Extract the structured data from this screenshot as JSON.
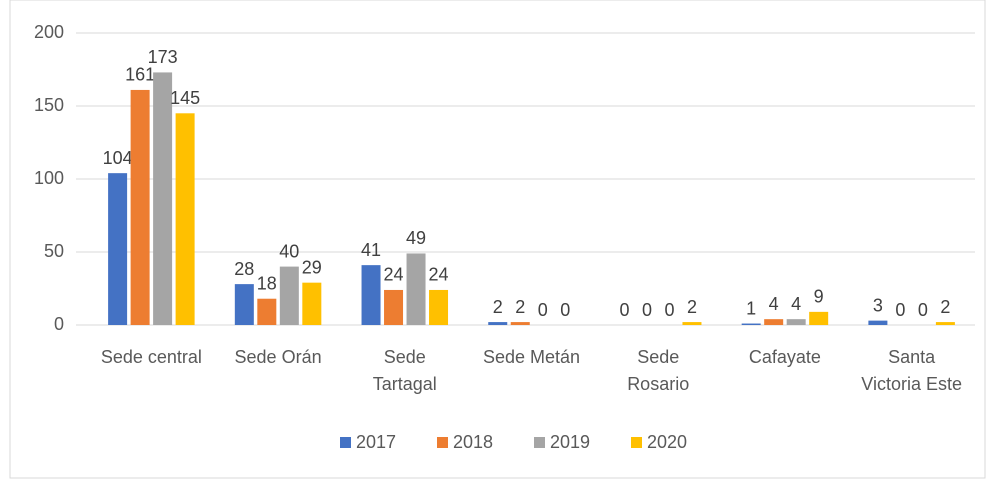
{
  "chart_data": {
    "type": "bar",
    "categories": [
      [
        "Sede central"
      ],
      [
        "Sede Orán"
      ],
      [
        "Sede",
        "Tartagal"
      ],
      [
        "Sede Metán"
      ],
      [
        "Sede",
        "Rosario"
      ],
      [
        "Cafayate"
      ],
      [
        "Santa",
        "Victoria Este"
      ]
    ],
    "series": [
      {
        "name": "2017",
        "color": "#4472c4",
        "values": [
          104,
          28,
          41,
          2,
          0,
          1,
          3
        ]
      },
      {
        "name": "2018",
        "color": "#ed7d31",
        "values": [
          161,
          18,
          24,
          2,
          0,
          4,
          0
        ]
      },
      {
        "name": "2019",
        "color": "#a5a5a5",
        "values": [
          173,
          40,
          49,
          0,
          0,
          4,
          0
        ]
      },
      {
        "name": "2020",
        "color": "#ffc000",
        "values": [
          145,
          29,
          24,
          0,
          2,
          9,
          2
        ]
      }
    ],
    "ylim": [
      0,
      200
    ],
    "yticks": [
      0,
      50,
      100,
      150,
      200
    ],
    "grid": true,
    "legend": "bottom"
  }
}
